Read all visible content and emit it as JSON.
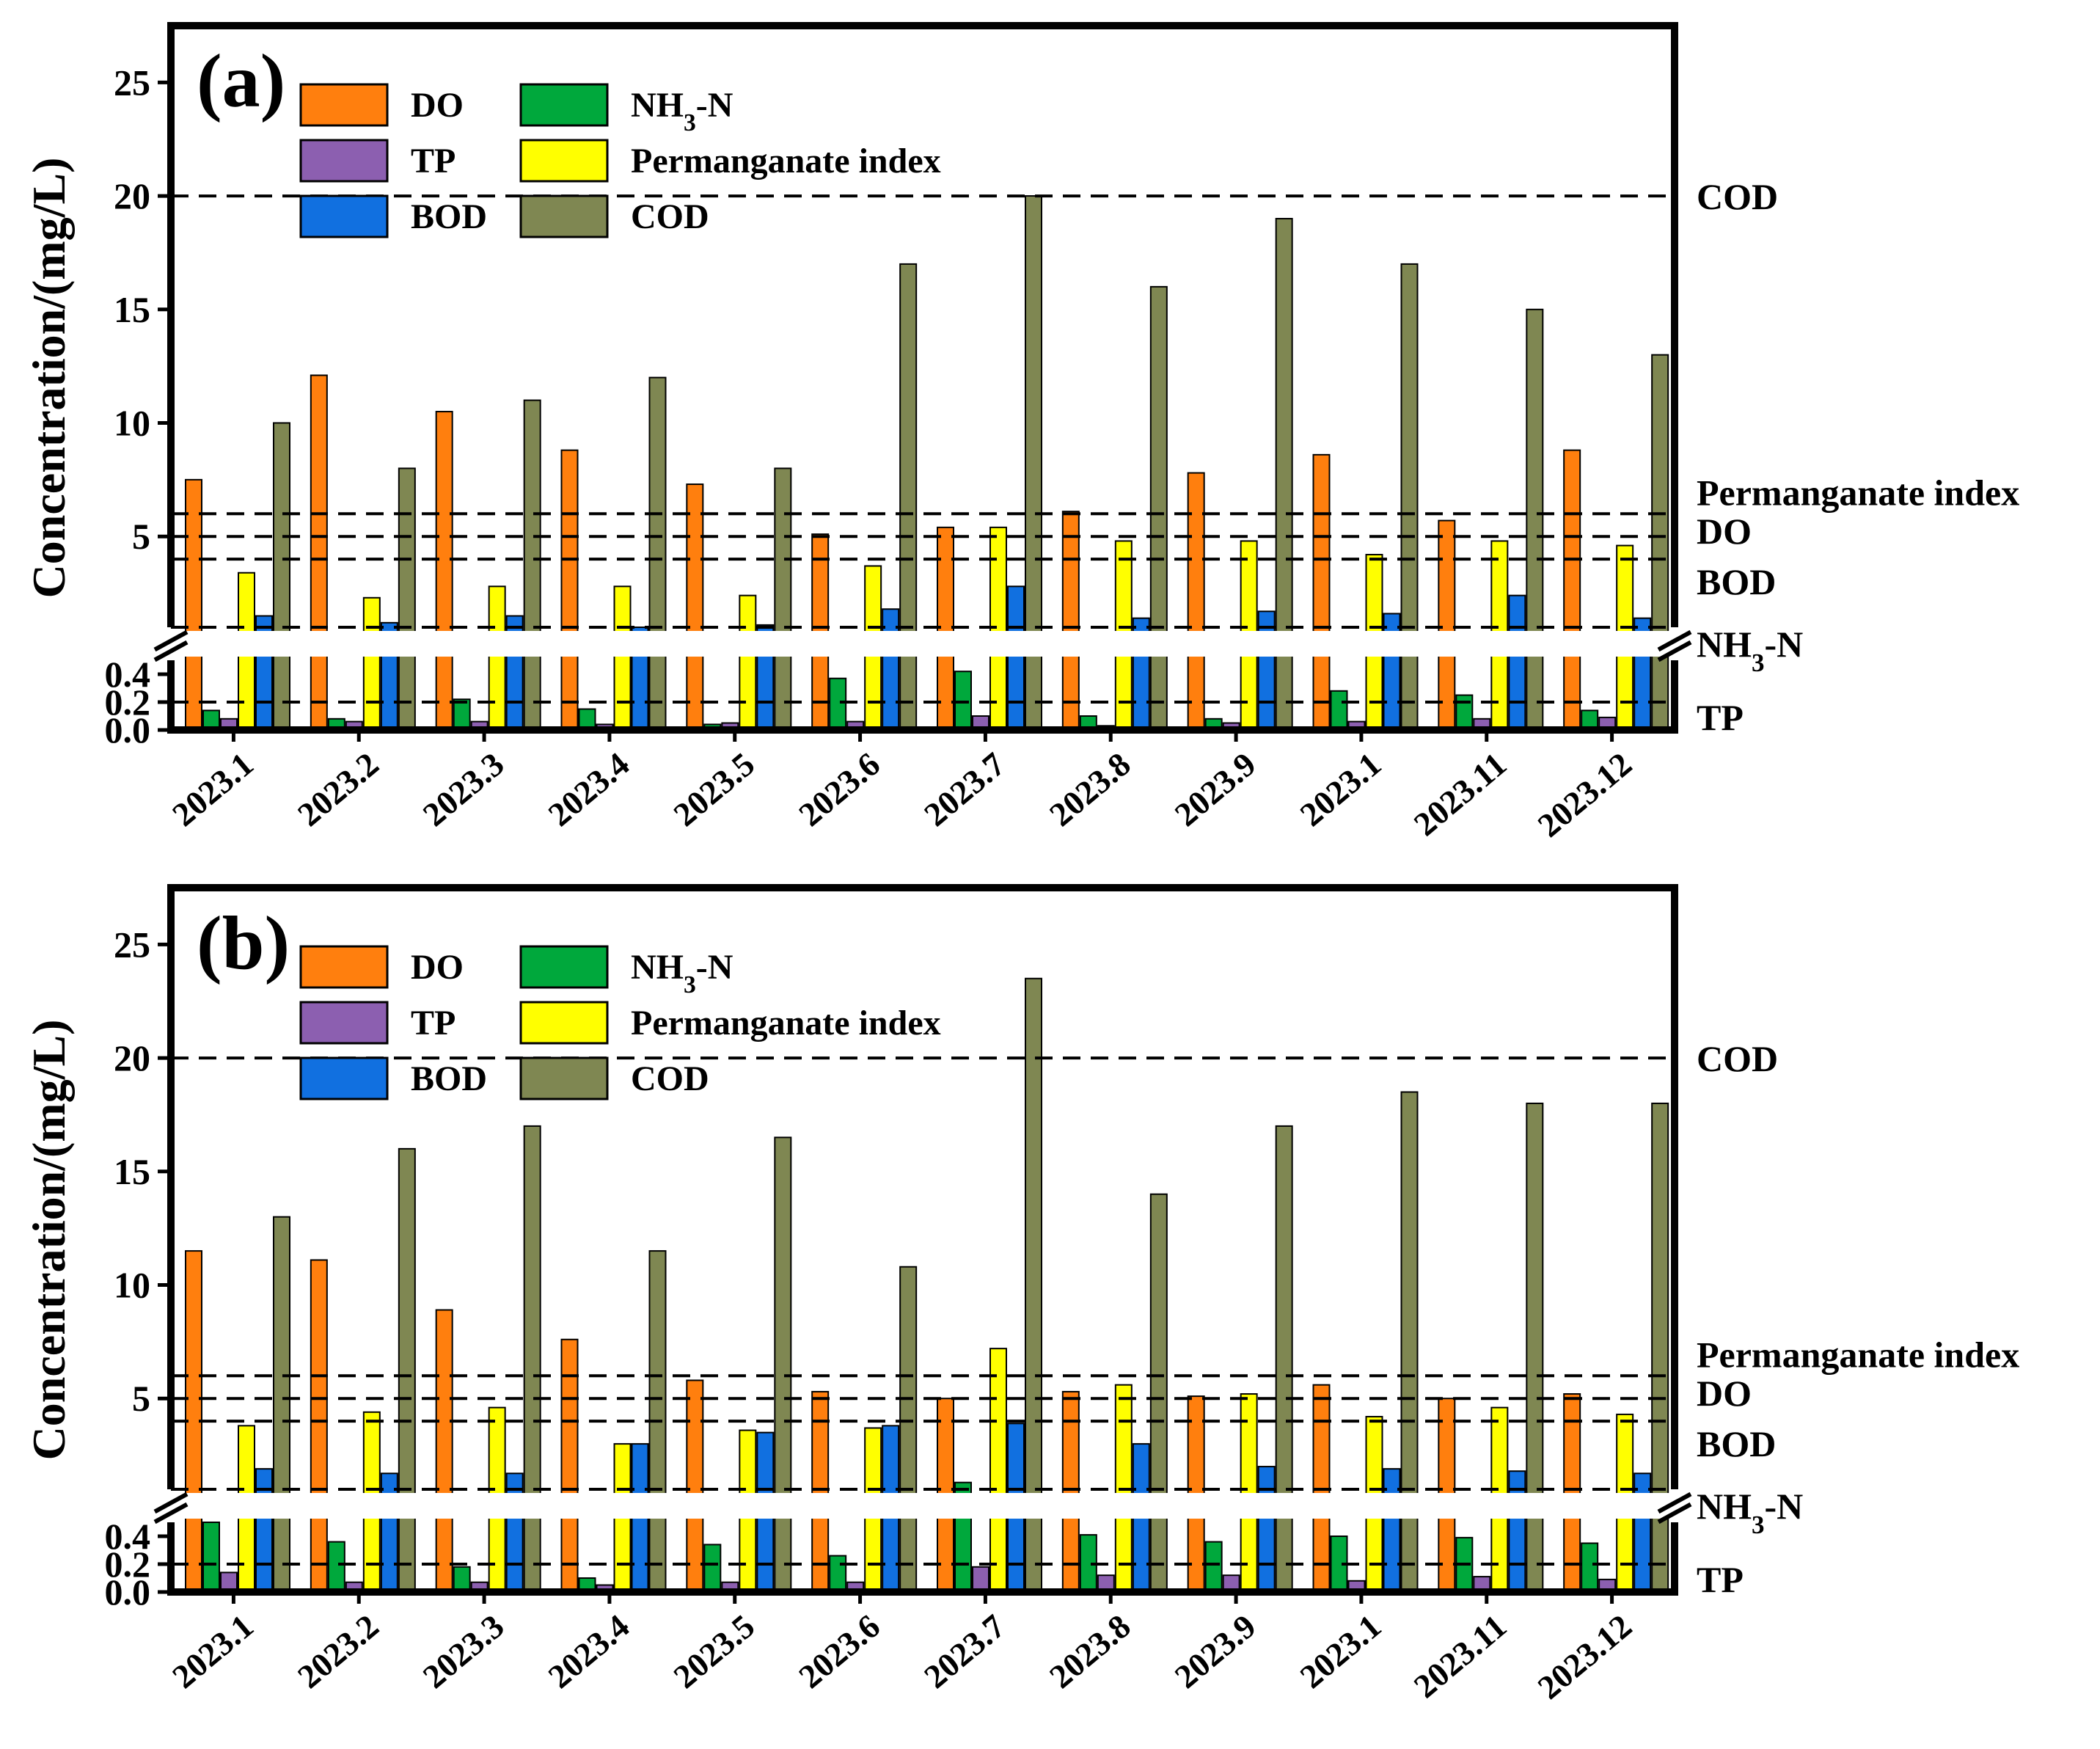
{
  "chart_data": [
    {
      "type": "bar",
      "panel_label": "(a)",
      "ylabel": "Concentration/(mg/L)",
      "broken_axis": true,
      "ylim_lower": [
        0.0,
        0.5
      ],
      "ylim_upper": [
        1.0,
        27.5
      ],
      "yticks_lower": [
        "0.0",
        "0.2",
        "0.4"
      ],
      "yticks_upper": [
        "5",
        "10",
        "15",
        "20",
        "25"
      ],
      "categories": [
        "2023.1",
        "2023.2",
        "2023.3",
        "2023.4",
        "2023.5",
        "2023.6",
        "2023.7",
        "2023.8",
        "2023.9",
        "2023.1",
        "2023.11",
        "2023.12"
      ],
      "series": [
        {
          "name": "DO",
          "color": "#FF7F0E",
          "values": [
            7.5,
            12.1,
            10.5,
            8.8,
            7.3,
            5.1,
            5.4,
            6.1,
            7.8,
            8.6,
            5.7,
            8.8
          ]
        },
        {
          "name": "NH3-N",
          "color": "#00A83C",
          "values": [
            0.14,
            0.08,
            0.22,
            0.15,
            0.04,
            0.37,
            0.42,
            0.1,
            0.08,
            0.28,
            0.25,
            0.14
          ]
        },
        {
          "name": "TP",
          "color": "#8C5FB0",
          "values": [
            0.08,
            0.06,
            0.06,
            0.04,
            0.05,
            0.06,
            0.1,
            0.03,
            0.05,
            0.06,
            0.08,
            0.09
          ]
        },
        {
          "name": "Permanganate index",
          "color": "#FFFF00",
          "values": [
            3.4,
            2.3,
            2.8,
            2.8,
            2.4,
            3.7,
            5.4,
            4.8,
            4.8,
            4.2,
            4.8,
            4.6
          ]
        },
        {
          "name": "BOD",
          "color": "#1170E0",
          "values": [
            1.5,
            1.2,
            1.5,
            1.0,
            1.1,
            1.8,
            2.8,
            1.4,
            1.7,
            1.6,
            2.4,
            1.4
          ]
        },
        {
          "name": "COD",
          "color": "#7F8752",
          "values": [
            10,
            8,
            11,
            12,
            8,
            17,
            20,
            16,
            19,
            17,
            15,
            13
          ]
        }
      ],
      "reference_lines": [
        {
          "label": "COD",
          "value": 20
        },
        {
          "label": "Permanganate index",
          "value": 6
        },
        {
          "label": "DO",
          "value": 5
        },
        {
          "label": "BOD",
          "value": 4
        },
        {
          "label": "NH3-N",
          "value": 1.0
        },
        {
          "label": "TP",
          "value": 0.2
        }
      ],
      "legend": [
        "DO",
        "NH3-N",
        "TP",
        "Permanganate index",
        "BOD",
        "COD"
      ]
    },
    {
      "type": "bar",
      "panel_label": "(b)",
      "ylabel": "Concentration/(mg/L)",
      "broken_axis": true,
      "ylim_lower": [
        0.0,
        0.5
      ],
      "ylim_upper": [
        1.0,
        27.5
      ],
      "yticks_lower": [
        "0.0",
        "0.2",
        "0.4"
      ],
      "yticks_upper": [
        "5",
        "10",
        "15",
        "20",
        "25"
      ],
      "categories": [
        "2023.1",
        "2023.2",
        "2023.3",
        "2023.4",
        "2023.5",
        "2023.6",
        "2023.7",
        "2023.8",
        "2023.9",
        "2023.1",
        "2023.11",
        "2023.12"
      ],
      "series": [
        {
          "name": "DO",
          "color": "#FF7F0E",
          "values": [
            11.5,
            11.1,
            8.9,
            7.6,
            5.8,
            5.3,
            5.0,
            5.3,
            5.1,
            5.6,
            5.0,
            5.2
          ]
        },
        {
          "name": "NH3-N",
          "color": "#00A83C",
          "values": [
            0.5,
            0.36,
            0.18,
            0.1,
            0.34,
            0.26,
            1.3,
            0.41,
            0.36,
            0.4,
            0.39,
            0.35
          ]
        },
        {
          "name": "TP",
          "color": "#8C5FB0",
          "values": [
            0.14,
            0.07,
            0.07,
            0.05,
            0.07,
            0.07,
            0.18,
            0.12,
            0.12,
            0.08,
            0.11,
            0.09
          ]
        },
        {
          "name": "Permanganate index",
          "color": "#FFFF00",
          "values": [
            3.8,
            4.4,
            4.6,
            3.0,
            3.6,
            3.7,
            7.2,
            5.6,
            5.2,
            4.2,
            4.6,
            4.3
          ]
        },
        {
          "name": "BOD",
          "color": "#1170E0",
          "values": [
            1.9,
            1.7,
            1.7,
            3.0,
            3.5,
            3.8,
            3.9,
            3.0,
            2.0,
            1.9,
            1.8,
            1.7
          ]
        },
        {
          "name": "COD",
          "color": "#7F8752",
          "values": [
            13,
            16,
            17,
            11.5,
            16.5,
            10.8,
            23.5,
            14,
            17,
            18.5,
            18,
            18
          ]
        }
      ],
      "reference_lines": [
        {
          "label": "COD",
          "value": 20
        },
        {
          "label": "Permanganate index",
          "value": 6
        },
        {
          "label": "DO",
          "value": 5
        },
        {
          "label": "BOD",
          "value": 4
        },
        {
          "label": "NH3-N",
          "value": 1.0
        },
        {
          "label": "TP",
          "value": 0.2
        }
      ],
      "legend": [
        "DO",
        "NH3-N",
        "TP",
        "Permanganate index",
        "BOD",
        "COD"
      ]
    }
  ]
}
